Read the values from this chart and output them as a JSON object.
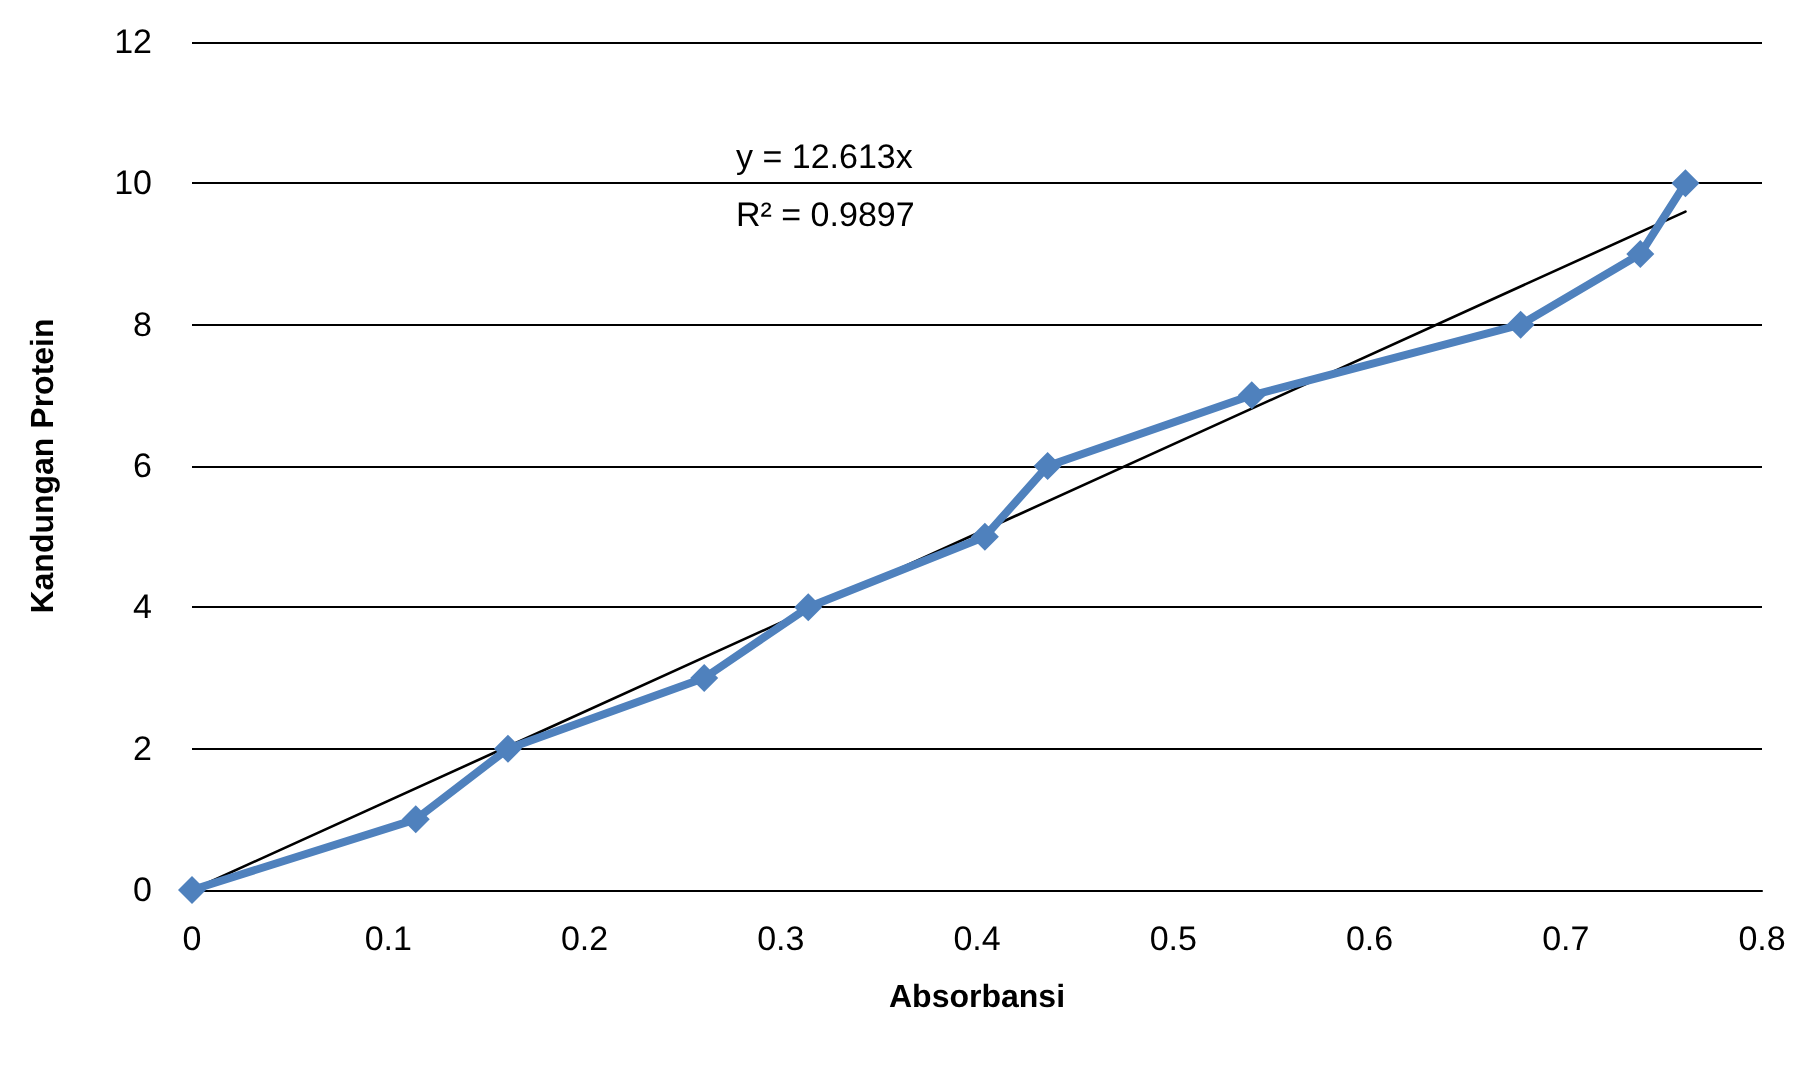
{
  "chart_data": {
    "type": "line",
    "xlabel": "Absorbansi",
    "ylabel": "Kandungan Protein",
    "annotations": [
      "y = 12.613x",
      "R² = 0.9897"
    ],
    "series": [
      {
        "color": "#4f81bd",
        "x": [
          0,
          0.114,
          0.161,
          0.261,
          0.314,
          0.404,
          0.436,
          0.54,
          0.677,
          0.738,
          0.761
        ],
        "values": [
          0,
          1,
          2,
          3,
          4,
          5,
          6,
          7,
          8,
          9,
          10
        ]
      },
      {
        "color": "#000000",
        "marker": "none",
        "x": [
          0,
          0.761
        ],
        "values": [
          0,
          9.6
        ]
      }
    ],
    "xlim": [
      0,
      0.8
    ],
    "xticks": [
      0,
      0.1,
      0.2,
      0.3,
      0.4,
      0.5,
      0.6,
      0.7,
      0.8
    ],
    "ylim": [
      0,
      12
    ],
    "yticks": [
      0,
      2,
      4,
      6,
      8,
      10,
      12
    ],
    "grid": "y",
    "marker": "diamond"
  }
}
